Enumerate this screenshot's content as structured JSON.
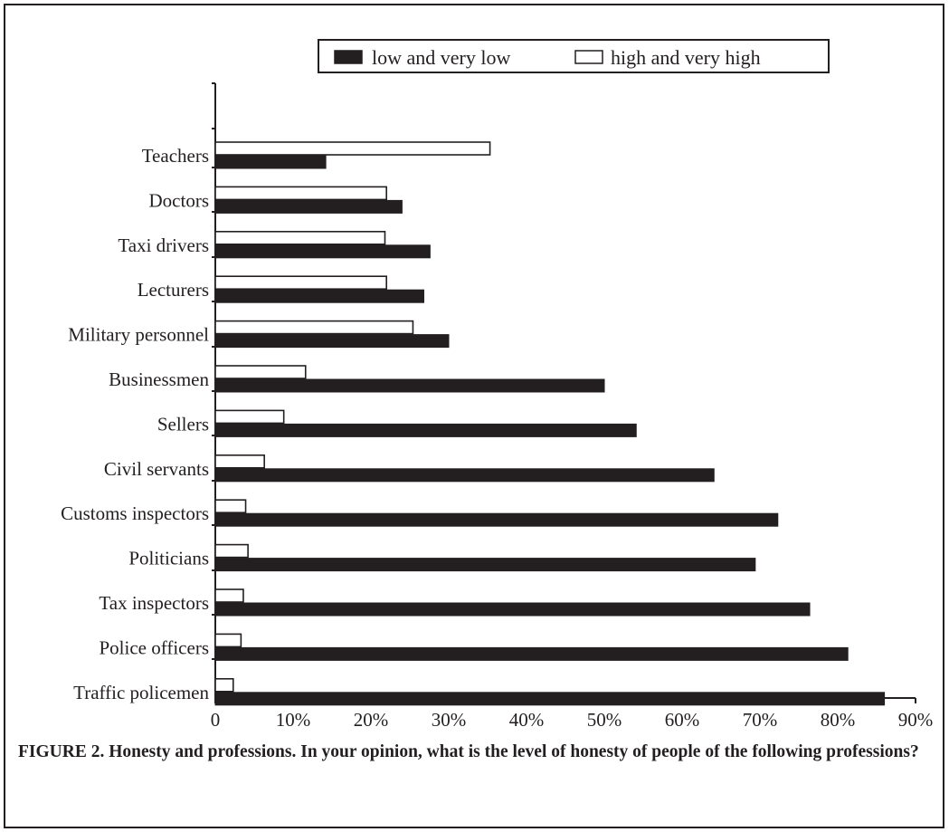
{
  "colors": {
    "dark": "#231f20",
    "light": "#ffffff"
  },
  "caption": "FIGURE 2. Honesty and professions. In your opinion, what is the level of honesty of people of the following professions?",
  "chart_data": {
    "type": "bar",
    "orientation": "horizontal",
    "title": "",
    "xlabel": "",
    "ylabel": "",
    "xlim": [
      0,
      90
    ],
    "x_ticks": [
      "0",
      "10%",
      "20%",
      "30%",
      "40%",
      "50%",
      "60%",
      "70%",
      "80%",
      "90%"
    ],
    "categories": [
      "Teachers",
      "Doctors",
      "Taxi drivers",
      "Lecturers",
      "Military personnel",
      "Businessmen",
      "Sellers",
      "Civil servants",
      "Customs inspectors",
      "Politicians",
      "Tax inspectors",
      "Police officers",
      "Traffic policemen"
    ],
    "series": [
      {
        "name": "low and very low",
        "color": "#231f20",
        "values": [
          14.2,
          24,
          27.6,
          26.8,
          30,
          50,
          54.1,
          64.1,
          72.3,
          69.4,
          76.4,
          81.3,
          86
        ]
      },
      {
        "name": "high and very high",
        "color": "#ffffff",
        "values": [
          35.3,
          22,
          21.8,
          22,
          25.4,
          11.6,
          8.8,
          6.3,
          3.9,
          4.2,
          3.6,
          3.3,
          2.3
        ]
      }
    ],
    "legend": "top",
    "grid": false
  }
}
